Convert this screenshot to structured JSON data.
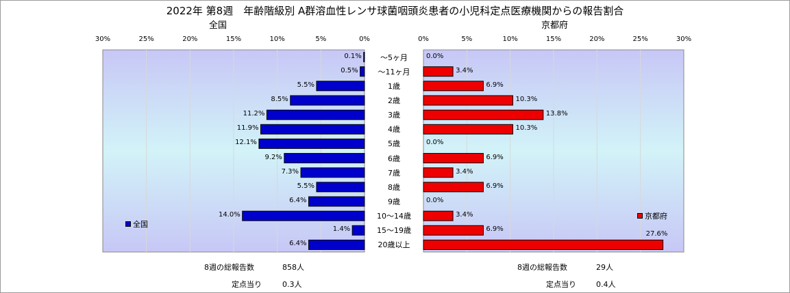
{
  "title": "2022年 第8週　年齢階級別 A群溶血性レンサ球菌咽頭炎患者の小児科定点医療機関からの報告割合",
  "chart_data": [
    {
      "type": "bar",
      "orientation": "horizontal",
      "name": "全国",
      "subtitle": "全国",
      "legend": "全国",
      "color": "#0000cc",
      "xlim": [
        0,
        30
      ],
      "ticks": [
        "30%",
        "25%",
        "20%",
        "15%",
        "10%",
        "5%",
        "0%"
      ],
      "categories": [
        "～5ヶ月",
        "～11ヶ月",
        "1歳",
        "2歳",
        "3歳",
        "4歳",
        "5歳",
        "6歳",
        "7歳",
        "8歳",
        "9歳",
        "10～14歳",
        "15～19歳",
        "20歳以上"
      ],
      "values": [
        0.1,
        0.5,
        5.5,
        8.5,
        11.2,
        11.9,
        12.1,
        9.2,
        7.3,
        5.5,
        6.4,
        14.0,
        1.4,
        6.4
      ],
      "labels": [
        "0.1%",
        "0.5%",
        "5.5%",
        "8.5%",
        "11.2%",
        "11.9%",
        "12.1%",
        "9.2%",
        "7.3%",
        "5.5%",
        "6.4%",
        "14.0%",
        "1.4%",
        "6.4%"
      ]
    },
    {
      "type": "bar",
      "orientation": "horizontal",
      "name": "京都府",
      "subtitle": "京都府",
      "legend": "京都府",
      "color": "#ee0000",
      "xlim": [
        0,
        30
      ],
      "ticks": [
        "0%",
        "5%",
        "10%",
        "15%",
        "20%",
        "25%",
        "30%"
      ],
      "categories": [
        "～5ヶ月",
        "～11ヶ月",
        "1歳",
        "2歳",
        "3歳",
        "4歳",
        "5歳",
        "6歳",
        "7歳",
        "8歳",
        "9歳",
        "10～14歳",
        "15～19歳",
        "20歳以上"
      ],
      "values": [
        0.0,
        3.4,
        6.9,
        10.3,
        13.8,
        10.3,
        0.0,
        6.9,
        3.4,
        6.9,
        0.0,
        3.4,
        6.9,
        27.6
      ],
      "labels": [
        "0.0%",
        "3.4%",
        "6.9%",
        "10.3%",
        "13.8%",
        "10.3%",
        "0.0%",
        "6.9%",
        "3.4%",
        "6.9%",
        "0.0%",
        "3.4%",
        "6.9%",
        "27.6%"
      ]
    }
  ],
  "footer": {
    "national_total_label": "8週の総報告数",
    "national_total_value": "858人",
    "national_per_label": "定点当り",
    "national_per_value": "0.3人",
    "kyoto_total_label": "8週の総報告数",
    "kyoto_total_value": "29人",
    "kyoto_per_label": "定点当り",
    "kyoto_per_value": "0.4人"
  }
}
